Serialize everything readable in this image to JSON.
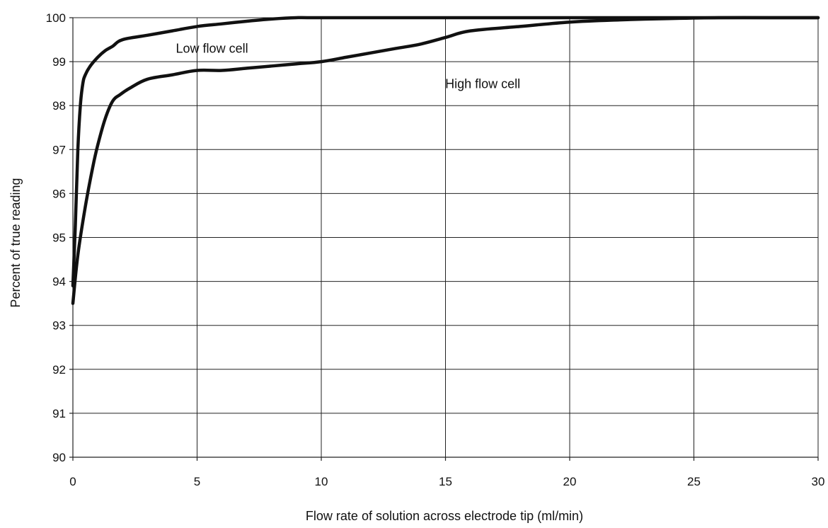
{
  "chart_data": {
    "type": "line",
    "title": "",
    "xlabel": "Flow rate of solution across electrode tip (ml/min)",
    "ylabel": "Percent of true reading",
    "xlim": [
      0,
      30
    ],
    "ylim": [
      90,
      100
    ],
    "x_ticks": [
      "0",
      "5",
      "10",
      "15",
      "20",
      "25",
      "30"
    ],
    "y_ticks": [
      "90",
      "91",
      "92",
      "93",
      "94",
      "95",
      "96",
      "97",
      "98",
      "99",
      "100"
    ],
    "grid": true,
    "legend": "none",
    "colors": {
      "line": "#111111",
      "grid": "#222222",
      "background": "#ffffff"
    },
    "series": [
      {
        "x": [
          0,
          0.1,
          0.2,
          0.3,
          0.4,
          0.5,
          0.7,
          1.0,
          1.3,
          1.6,
          2.0,
          3.0,
          4.0,
          5.0,
          6.0,
          7.0,
          8.0,
          9.0,
          10.0,
          15,
          20,
          25,
          30
        ],
        "y": [
          93.9,
          95.3,
          97.0,
          98.0,
          98.5,
          98.7,
          98.9,
          99.1,
          99.25,
          99.35,
          99.5,
          99.6,
          99.7,
          99.8,
          99.86,
          99.92,
          99.97,
          100.0,
          100.0,
          100.0,
          100.0,
          100.0,
          100.0
        ]
      },
      {
        "x": [
          0,
          0.2,
          0.5,
          0.8,
          1.0,
          1.3,
          1.6,
          1.9,
          2.3,
          3.0,
          4.0,
          5.0,
          6.0,
          7.0,
          8.0,
          9.0,
          10.0,
          11.0,
          12.0,
          13.0,
          14.0,
          15.0,
          16.0,
          18.0,
          20.0,
          22.0,
          24.0,
          26.0,
          28.0,
          30.0
        ],
        "y": [
          93.5,
          94.6,
          95.7,
          96.6,
          97.1,
          97.7,
          98.1,
          98.25,
          98.4,
          98.6,
          98.7,
          98.8,
          98.8,
          98.85,
          98.9,
          98.95,
          99.0,
          99.1,
          99.2,
          99.3,
          99.4,
          99.55,
          99.7,
          99.8,
          99.9,
          99.95,
          99.98,
          100.0,
          100.0,
          100.0
        ]
      }
    ],
    "annotations": [
      {
        "text": "Low flow cell",
        "x": 5.6,
        "y": 99.2
      },
      {
        "text": "High flow cell",
        "x": 16.5,
        "y": 98.4
      }
    ]
  }
}
